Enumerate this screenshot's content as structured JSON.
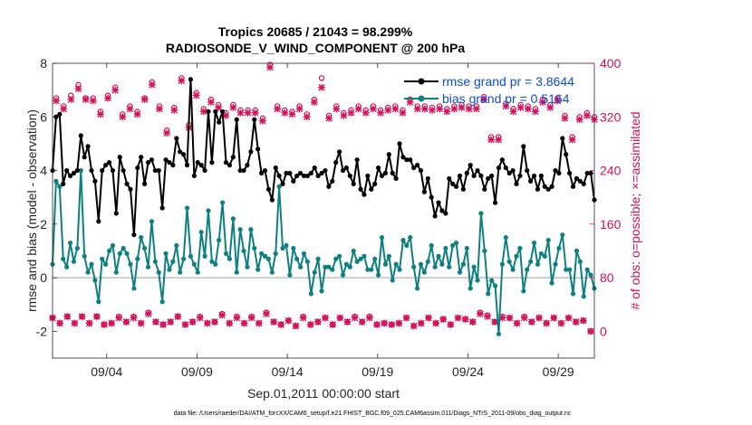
{
  "chart_data": {
    "type": "line",
    "title_line1": "Tropics 20685 / 21043 = 98.299%",
    "title_line2": "RADIOSONDE_V_WIND_COMPONENT @ 200 hPa",
    "xlabel": "Sep.01,2011 00:00:00 start",
    "ylabel_left": "rmse and bias (model - observation)",
    "ylabel_right": "# of obs: o=possible; ×=assimilated",
    "footer": "data file: /Users/raeder/DAI/ATM_forcXX/CAM6_setup/f.e21.FHIST_BGC.f09_025.CAM6assim.011/Diags_NTrS_2011-09/obs_diag_output.nc",
    "x_range_days": [
      1.0,
      31.0
    ],
    "left_ylim": [
      -3,
      8
    ],
    "right_ylim": [
      -40,
      400
    ],
    "left_ticks": [
      -2,
      0,
      2,
      4,
      6,
      8
    ],
    "right_ticks": [
      0,
      80,
      160,
      240,
      320,
      400
    ],
    "x_ticks": [
      {
        "day": 4,
        "label": "09/04"
      },
      {
        "day": 9,
        "label": "09/09"
      },
      {
        "day": 14,
        "label": "09/14"
      },
      {
        "day": 19,
        "label": "09/19"
      },
      {
        "day": 24,
        "label": "09/24"
      },
      {
        "day": 29,
        "label": "09/29"
      }
    ],
    "colors": {
      "rmse": "#000000",
      "bias": "#0e8080",
      "counts": "#d6105a",
      "zero": "#bfbfbf",
      "legend_text": "#0b4cd6"
    },
    "series": [
      {
        "name": "rmse grand pr = 3.8644",
        "role": "rmse",
        "values": [
          4.0,
          6.0,
          6.1,
          3.5,
          4.0,
          3.8,
          3.9,
          4.0,
          5.3,
          4.5,
          4.9,
          4.0,
          3.6,
          2.1,
          4.0,
          4.2,
          4.3,
          4.0,
          2.4,
          4.5,
          4.0,
          3.5,
          3.3,
          1.6,
          4.1,
          4.5,
          3.5,
          4.3,
          4.4,
          4.0,
          4.0,
          2.6,
          4.4,
          4.3,
          4.2,
          5.2,
          4.7,
          4.6,
          4.2,
          7.4,
          3.8,
          4.3,
          4.2,
          4.0,
          6.2,
          4.3,
          6.2,
          5.8,
          6.2,
          4.3,
          4.2,
          4.5,
          5.9,
          4.0,
          4.0,
          4.2,
          4.7,
          5.9,
          4.8,
          3.9,
          4.0,
          3.3,
          2.9,
          4.1,
          3.8,
          3.5,
          3.9,
          3.9,
          3.6,
          3.8,
          3.9,
          3.8,
          3.8,
          3.9,
          4.1,
          3.8,
          3.9,
          4.0,
          3.4,
          3.6,
          4.3,
          4.7,
          4.0,
          4.1,
          3.8,
          3.5,
          4.4,
          3.3,
          3.1,
          3.8,
          3.3,
          3.5,
          4.1,
          3.8,
          3.9,
          4.6,
          3.9,
          3.7,
          5.0,
          4.5,
          4.4,
          4.4,
          4.1,
          4.2,
          4.0,
          3.2,
          3.7,
          3.0,
          2.3,
          2.8,
          2.5,
          2.4,
          3.7,
          3.5,
          3.4,
          3.8,
          3.3,
          3.9,
          4.2,
          3.8,
          4.0,
          3.8,
          3.3,
          3.7,
          3.8,
          2.8,
          4.1,
          4.4,
          4.1,
          3.9,
          4.0,
          3.5,
          3.8,
          4.9,
          4.0,
          3.6,
          3.8,
          3.3,
          3.8,
          3.4,
          3.3,
          3.4,
          4.0,
          3.9,
          5.2,
          4.6,
          3.9,
          3.4,
          3.7,
          3.6,
          3.5,
          3.9,
          3.9,
          2.9
        ]
      },
      {
        "name": "bias grand pr = 0.5164",
        "role": "bias",
        "values": [
          0.5,
          3.6,
          3.4,
          0.7,
          0.4,
          1.3,
          0.6,
          1.1,
          4.0,
          0.8,
          0.2,
          0.5,
          -0.1,
          -0.9,
          0.7,
          0.5,
          1.0,
          1.2,
          0.2,
          0.9,
          1.1,
          0.9,
          0.5,
          -0.4,
          0.7,
          1.5,
          1.1,
          0.4,
          2.1,
          0.6,
          0.2,
          -0.9,
          0.9,
          0.3,
          0.6,
          1.2,
          0.2,
          0.7,
          2.6,
          0.8,
          0.5,
          0.2,
          1.7,
          0.8,
          2.5,
          0.6,
          0.5,
          1.4,
          2.8,
          0.9,
          0.7,
          2.2,
          0.2,
          1.8,
          1.0,
          0.4,
          1.8,
          1.1,
          0.3,
          0.9,
          0.8,
          0.7,
          0.2,
          0.9,
          3.4,
          1.1,
          1.2,
          0.1,
          1.1,
          0.7,
          0.4,
          0.9,
          0.6,
          -0.6,
          0.2,
          0.7,
          -0.5,
          0.4,
          0.4,
          0.3,
          0.7,
          0.8,
          0.1,
          0.5,
          0.4,
          1.0,
          0.6,
          0.7,
          0.8,
          0.3,
          0.3,
          0.7,
          0.1,
          1.5,
          0.5,
          0.8,
          -0.1,
          0.5,
          0.3,
          1.4,
          1.2,
          1.5,
          0.4,
          -0.4,
          0.5,
          0.2,
          0.6,
          1.2,
          0.4,
          0.8,
          0.5,
          1.1,
          0.4,
          1.2,
          1.3,
          0.2,
          0.5,
          1.1,
          -0.4,
          0.4,
          -0.1,
          2.4,
          1.0,
          -0.6,
          -0.1,
          -0.3,
          -2.1,
          0.5,
          1.5,
          0.6,
          0.3,
          0.8,
          1.1,
          -0.5,
          0.3,
          0.6,
          1.3,
          0.5,
          0.9,
          0.8,
          1.4,
          -0.2,
          0.5,
          1.1,
          1.6,
          0.3,
          0.3,
          -0.6,
          1.0,
          0.6,
          -0.7,
          0.3,
          0.1,
          -0.4
        ]
      },
      {
        "name": "obs possible",
        "role": "possible",
        "values": [
          20,
          348,
          12,
          336,
          22,
          352,
          12,
          368,
          22,
          348,
          12,
          348,
          22,
          328,
          10,
          352,
          12,
          364,
          22,
          324,
          14,
          336,
          22,
          328,
          12,
          348,
          28,
          372,
          14,
          336,
          10,
          300,
          14,
          334,
          22,
          378,
          10,
          308,
          14,
          356,
          22,
          332,
          12,
          346,
          14,
          338,
          26,
          326,
          12,
          338,
          22,
          330,
          12,
          330,
          22,
          330,
          12,
          318,
          28,
          398,
          14,
          336,
          10,
          330,
          16,
          328,
          8,
          336,
          22,
          324,
          10,
          346,
          14,
          378,
          20,
          322,
          10,
          336,
          20,
          326,
          14,
          330,
          22,
          336,
          14,
          330,
          22,
          336,
          10,
          330,
          12,
          334,
          10,
          336,
          12,
          330,
          20,
          346,
          8,
          336,
          12,
          336,
          20,
          334,
          12,
          336,
          18,
          332,
          10,
          336,
          20,
          338,
          18,
          336,
          14,
          336,
          28,
          350,
          24,
          290,
          14,
          290,
          22,
          340,
          20,
          332,
          12,
          338,
          22,
          336,
          14,
          332,
          20,
          346,
          12,
          338,
          20,
          348,
          12,
          322,
          20,
          290,
          14,
          320,
          16,
          326,
          0,
          320
        ]
      },
      {
        "name": "obs assimilated",
        "role": "assimilated",
        "values": [
          20,
          344,
          12,
          332,
          22,
          346,
          12,
          362,
          22,
          346,
          12,
          344,
          22,
          324,
          10,
          348,
          12,
          360,
          20,
          320,
          14,
          332,
          20,
          324,
          12,
          346,
          26,
          368,
          14,
          332,
          10,
          296,
          14,
          330,
          22,
          374,
          10,
          304,
          14,
          352,
          20,
          328,
          12,
          342,
          14,
          334,
          24,
          322,
          12,
          334,
          20,
          326,
          12,
          326,
          20,
          326,
          12,
          314,
          26,
          394,
          14,
          332,
          10,
          326,
          16,
          324,
          8,
          332,
          20,
          320,
          10,
          342,
          14,
          364,
          20,
          318,
          10,
          332,
          20,
          322,
          14,
          326,
          20,
          332,
          14,
          326,
          20,
          332,
          10,
          326,
          12,
          330,
          10,
          332,
          12,
          326,
          20,
          342,
          8,
          332,
          12,
          332,
          20,
          330,
          12,
          332,
          18,
          328,
          10,
          332,
          20,
          334,
          18,
          332,
          14,
          332,
          26,
          346,
          22,
          286,
          14,
          286,
          20,
          336,
          20,
          328,
          12,
          334,
          20,
          332,
          14,
          328,
          20,
          342,
          12,
          334,
          20,
          344,
          12,
          318,
          20,
          286,
          14,
          316,
          16,
          322,
          0,
          316
        ]
      }
    ],
    "legend": [
      "rmse grand pr = 3.8644",
      "bias grand pr = 0.5164"
    ],
    "legend_position": "top-right"
  }
}
